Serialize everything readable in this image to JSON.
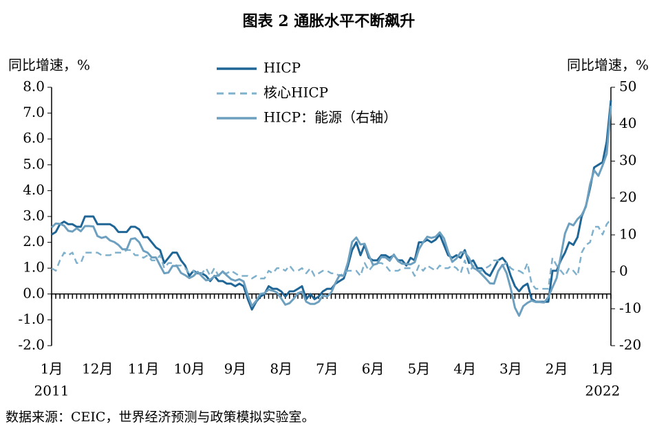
{
  "chart_data": {
    "type": "line",
    "title": "图表 2 通胀水平不断飙升",
    "ylabel": "同比增速，%",
    "y2label": "同比增速，%",
    "source": "数据来源：CEIC，世界经济预测与政策模拟实验室。",
    "ylim": [
      -2,
      8
    ],
    "yticks": [
      {
        "value": 8,
        "label": "8.0"
      },
      {
        "value": 7,
        "label": "7.0"
      },
      {
        "value": 6,
        "label": "6.0"
      },
      {
        "value": 5,
        "label": "5.0"
      },
      {
        "value": 4,
        "label": "4.0"
      },
      {
        "value": 3,
        "label": "3.0"
      },
      {
        "value": 2,
        "label": "2.0"
      },
      {
        "value": 1,
        "label": "1.0"
      },
      {
        "value": 0,
        "label": "0.0"
      },
      {
        "value": -1,
        "label": "-1.0"
      },
      {
        "value": -2,
        "label": "-2.0"
      }
    ],
    "y2lim": [
      -20,
      50
    ],
    "y2ticks": [
      50,
      40,
      30,
      20,
      10,
      0,
      -10,
      -20
    ],
    "xlim": [
      0,
      134
    ],
    "xticks": [
      {
        "value": 0,
        "label": "1月"
      },
      {
        "value": 11,
        "label": "12月"
      },
      {
        "value": 22,
        "label": "11月"
      },
      {
        "value": 33,
        "label": "10月"
      },
      {
        "value": 44,
        "label": "9月"
      },
      {
        "value": 55,
        "label": "8月"
      },
      {
        "value": 66,
        "label": "7月"
      },
      {
        "value": 77,
        "label": "6月"
      },
      {
        "value": 88,
        "label": "5月"
      },
      {
        "value": 99,
        "label": "4月"
      },
      {
        "value": 110,
        "label": "3月"
      },
      {
        "value": 121,
        "label": "2月"
      },
      {
        "value": 132,
        "label": "1月"
      }
    ],
    "xyears": [
      {
        "value": 0,
        "label": "2011"
      },
      {
        "value": 132,
        "label": "2022"
      }
    ],
    "series": [
      {
        "name": "HICP",
        "color": "#1f6596",
        "dash": false,
        "width": 3,
        "values": [
          2.3,
          2.4,
          2.7,
          2.8,
          2.7,
          2.7,
          2.6,
          2.6,
          3.0,
          3.0,
          3.0,
          2.7,
          2.7,
          2.7,
          2.7,
          2.6,
          2.4,
          2.4,
          2.4,
          2.6,
          2.6,
          2.5,
          2.2,
          2.2,
          2.0,
          1.8,
          1.7,
          1.2,
          1.4,
          1.6,
          1.6,
          1.3,
          1.1,
          0.7,
          0.9,
          0.8,
          0.8,
          0.7,
          0.5,
          0.7,
          0.5,
          0.5,
          0.4,
          0.4,
          0.3,
          0.4,
          0.3,
          -0.2,
          -0.6,
          -0.3,
          -0.1,
          0.0,
          0.3,
          0.2,
          0.2,
          0.1,
          -0.1,
          0.1,
          0.1,
          0.2,
          0.3,
          -0.2,
          0.0,
          -0.2,
          -0.1,
          0.1,
          0.2,
          0.2,
          0.4,
          0.5,
          0.6,
          1.1,
          1.7,
          2.0,
          1.5,
          1.9,
          1.4,
          1.3,
          1.3,
          1.5,
          1.5,
          1.4,
          1.5,
          1.3,
          1.3,
          1.1,
          1.4,
          1.3,
          2.0,
          2.0,
          2.1,
          2.0,
          2.1,
          2.3,
          1.9,
          1.5,
          1.4,
          1.5,
          1.4,
          1.7,
          1.2,
          1.3,
          1.0,
          1.0,
          0.8,
          0.7,
          1.0,
          1.3,
          1.4,
          1.2,
          0.7,
          0.3,
          0.1,
          0.3,
          0.4,
          -0.2,
          -0.3,
          -0.3,
          -0.3,
          -0.3,
          0.9,
          0.9,
          1.3,
          1.6,
          2.0,
          1.9,
          2.2,
          3.0,
          3.4,
          4.1,
          4.9,
          5.0,
          5.1,
          5.9,
          7.5
        ]
      },
      {
        "name": "核心HICP",
        "color": "#7fb0cc",
        "dash": true,
        "width": 2.5,
        "values": [
          1.0,
          0.9,
          1.3,
          1.6,
          1.5,
          1.6,
          1.2,
          1.2,
          1.6,
          1.6,
          1.6,
          1.6,
          1.5,
          1.5,
          1.5,
          1.6,
          1.6,
          1.6,
          1.7,
          1.7,
          1.5,
          1.5,
          1.4,
          1.5,
          1.3,
          1.3,
          1.5,
          1.0,
          1.2,
          1.2,
          1.1,
          1.1,
          1.0,
          0.8,
          0.9,
          0.7,
          0.8,
          1.0,
          0.7,
          1.0,
          0.7,
          0.8,
          0.8,
          0.9,
          0.8,
          0.7,
          0.7,
          0.7,
          0.6,
          0.7,
          0.6,
          0.6,
          0.9,
          0.8,
          1.0,
          1.0,
          0.9,
          1.1,
          0.9,
          0.9,
          1.0,
          0.8,
          1.0,
          0.7,
          0.8,
          0.9,
          0.9,
          0.8,
          0.8,
          0.7,
          0.8,
          0.9,
          0.9,
          0.9,
          0.7,
          1.2,
          0.9,
          1.1,
          1.2,
          1.2,
          1.1,
          0.9,
          0.9,
          0.9,
          1.0,
          1.0,
          1.0,
          0.7,
          1.1,
          0.9,
          1.1,
          1.0,
          0.9,
          1.1,
          1.0,
          1.0,
          1.1,
          1.0,
          0.8,
          1.3,
          0.8,
          1.1,
          0.9,
          0.9,
          1.0,
          1.1,
          1.3,
          1.3,
          1.1,
          1.2,
          1.0,
          0.9,
          0.9,
          0.8,
          1.2,
          0.4,
          0.2,
          0.2,
          0.2,
          0.2,
          1.4,
          1.1,
          0.9,
          0.7,
          1.0,
          0.9,
          0.7,
          1.6,
          1.9,
          2.0,
          2.6,
          2.6,
          2.3,
          2.7,
          2.9
        ]
      },
      {
        "name": "HICP：能源（右轴）",
        "color": "#6d9fbf",
        "dash": false,
        "width": 3,
        "axis": "y2",
        "values": [
          12.0,
          13.1,
          13.0,
          12.5,
          11.1,
          10.9,
          11.8,
          11.0,
          12.4,
          12.4,
          12.3,
          9.7,
          9.2,
          9.5,
          8.5,
          8.1,
          7.3,
          6.1,
          6.1,
          8.9,
          9.1,
          8.0,
          5.7,
          5.2,
          3.9,
          3.9,
          1.7,
          -0.4,
          -0.2,
          1.6,
          1.6,
          -0.3,
          -0.9,
          -1.7,
          -1.1,
          0.0,
          -1.2,
          -2.3,
          -2.1,
          -1.2,
          -1.0,
          0.1,
          -1.0,
          -2.0,
          -2.4,
          -2.0,
          -2.6,
          -6.3,
          -9.3,
          -7.9,
          -6.0,
          -5.8,
          -4.8,
          -5.1,
          -5.6,
          -7.2,
          -8.9,
          -8.5,
          -7.3,
          -5.8,
          -5.4,
          -8.1,
          -8.7,
          -8.7,
          -8.1,
          -6.4,
          -6.7,
          -5.6,
          -3.0,
          -0.9,
          -1.1,
          2.6,
          8.1,
          9.3,
          7.4,
          7.6,
          4.5,
          1.9,
          2.2,
          4.0,
          3.9,
          3.0,
          4.7,
          2.9,
          2.2,
          2.1,
          2.0,
          2.6,
          6.1,
          8.0,
          9.5,
          9.2,
          9.5,
          10.7,
          9.1,
          5.5,
          2.7,
          3.6,
          5.3,
          5.3,
          3.8,
          1.1,
          0.5,
          -0.6,
          -1.8,
          -3.1,
          -3.2,
          0.2,
          1.9,
          -0.3,
          -4.5,
          -9.7,
          -11.9,
          -9.3,
          -8.4,
          -7.8,
          -8.2,
          -8.2,
          -8.3,
          -6.9,
          -4.2,
          -1.7,
          4.3,
          10.4,
          13.1,
          12.6,
          14.3,
          15.4,
          17.6,
          23.7,
          27.5,
          26.0,
          28.8,
          32.0,
          45.0
        ]
      }
    ]
  }
}
